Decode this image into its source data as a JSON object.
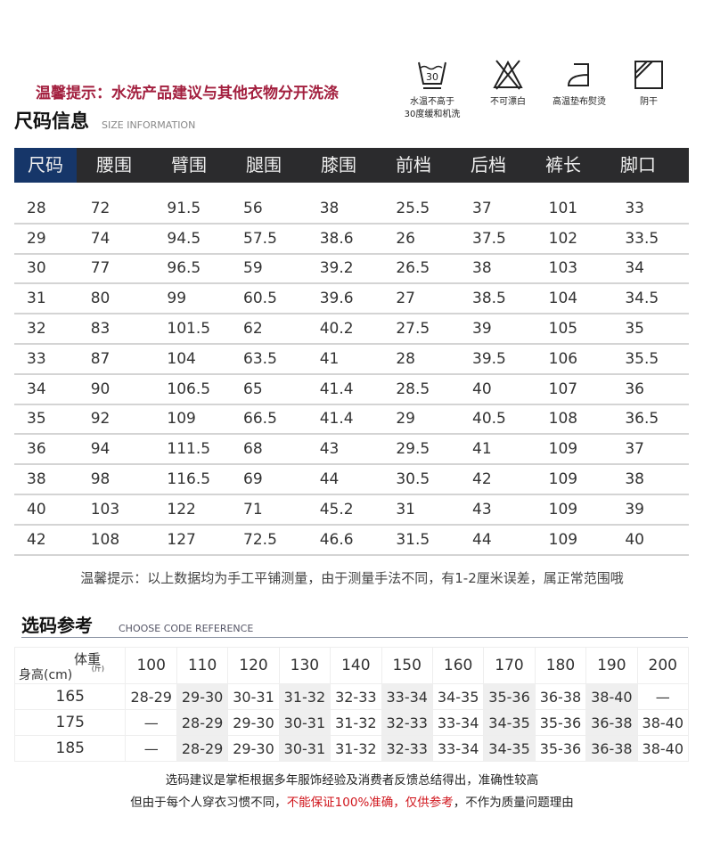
{
  "tip": "温馨提示：水洗产品建议与其他衣物分开洗涤",
  "title": "尺码信息",
  "title_en": "SIZE INFORMATION",
  "care": [
    {
      "icon": "wash-30-icon",
      "label1": "水温不高于",
      "label2": "30度缓和机洗"
    },
    {
      "icon": "no-bleach-icon",
      "label1": "不可漂白",
      "label2": ""
    },
    {
      "icon": "iron-icon",
      "label1": "高温垫布熨烫",
      "label2": ""
    },
    {
      "icon": "dry-shade-icon",
      "label1": "阴干",
      "label2": ""
    }
  ],
  "headers": [
    "尺码",
    "腰围",
    "臂围",
    "腿围",
    "膝围",
    "前档",
    "后档",
    "裤长",
    "脚口"
  ],
  "rows": [
    [
      "28",
      "72",
      "91.5",
      "56",
      "38",
      "25.5",
      "37",
      "101",
      "33"
    ],
    [
      "29",
      "74",
      "94.5",
      "57.5",
      "38.6",
      "26",
      "37.5",
      "102",
      "33.5"
    ],
    [
      "30",
      "77",
      "96.5",
      "59",
      "39.2",
      "26.5",
      "38",
      "103",
      "34"
    ],
    [
      "31",
      "80",
      "99",
      "60.5",
      "39.6",
      "27",
      "38.5",
      "104",
      "34.5"
    ],
    [
      "32",
      "83",
      "101.5",
      "62",
      "40.2",
      "27.5",
      "39",
      "105",
      "35"
    ],
    [
      "33",
      "87",
      "104",
      "63.5",
      "41",
      "28",
      "39.5",
      "106",
      "35.5"
    ],
    [
      "34",
      "90",
      "106.5",
      "65",
      "41.4",
      "28.5",
      "40",
      "107",
      "36"
    ],
    [
      "35",
      "92",
      "109",
      "66.5",
      "41.4",
      "29",
      "40.5",
      "108",
      "36.5"
    ],
    [
      "36",
      "94",
      "111.5",
      "68",
      "43",
      "29.5",
      "41",
      "109",
      "37"
    ],
    [
      "38",
      "98",
      "116.5",
      "69",
      "44",
      "30.5",
      "42",
      "109",
      "38"
    ],
    [
      "40",
      "103",
      "122",
      "71",
      "45.2",
      "31",
      "43",
      "109",
      "39"
    ],
    [
      "42",
      "108",
      "127",
      "72.5",
      "46.6",
      "31.5",
      "44",
      "109",
      "40"
    ]
  ],
  "note": "温馨提示：以上数据均为手工平铺测量，由于测量手法不同，有1-2厘米误差，属正常范围哦",
  "ref": {
    "title": "选码参考",
    "title_en": "CHOOSE CODE REFERENCE",
    "weight_label": "体重",
    "weight_unit": "(斤)",
    "height_label": "身高(cm)",
    "weights": [
      "100",
      "110",
      "120",
      "130",
      "140",
      "150",
      "160",
      "170",
      "180",
      "190",
      "200"
    ],
    "rows": [
      {
        "height": "165",
        "sizes": [
          "28-29",
          "29-30",
          "30-31",
          "31-32",
          "32-33",
          "33-34",
          "34-35",
          "35-36",
          "36-38",
          "38-40",
          "—"
        ]
      },
      {
        "height": "175",
        "sizes": [
          "—",
          "28-29",
          "29-30",
          "30-31",
          "31-32",
          "32-33",
          "33-34",
          "34-35",
          "35-36",
          "36-38",
          "38-40"
        ]
      },
      {
        "height": "185",
        "sizes": [
          "—",
          "28-29",
          "29-30",
          "30-31",
          "31-32",
          "32-33",
          "33-34",
          "34-35",
          "35-36",
          "36-38",
          "38-40"
        ]
      }
    ]
  },
  "footer": {
    "line1": "选码建议是掌柜根据多年服饰经验及消费者反馈总结得出，准确性较高",
    "line2a": "但由于每个人穿衣习惯不同，",
    "line2b": "不能保证100%准确，仅供参考",
    "line2c": "，不作为质量问题理由"
  },
  "colors": {
    "tip": "#a3203f",
    "header_bar": "#2b2b2d",
    "header_first": "#163669",
    "warning": "#d0141b"
  }
}
